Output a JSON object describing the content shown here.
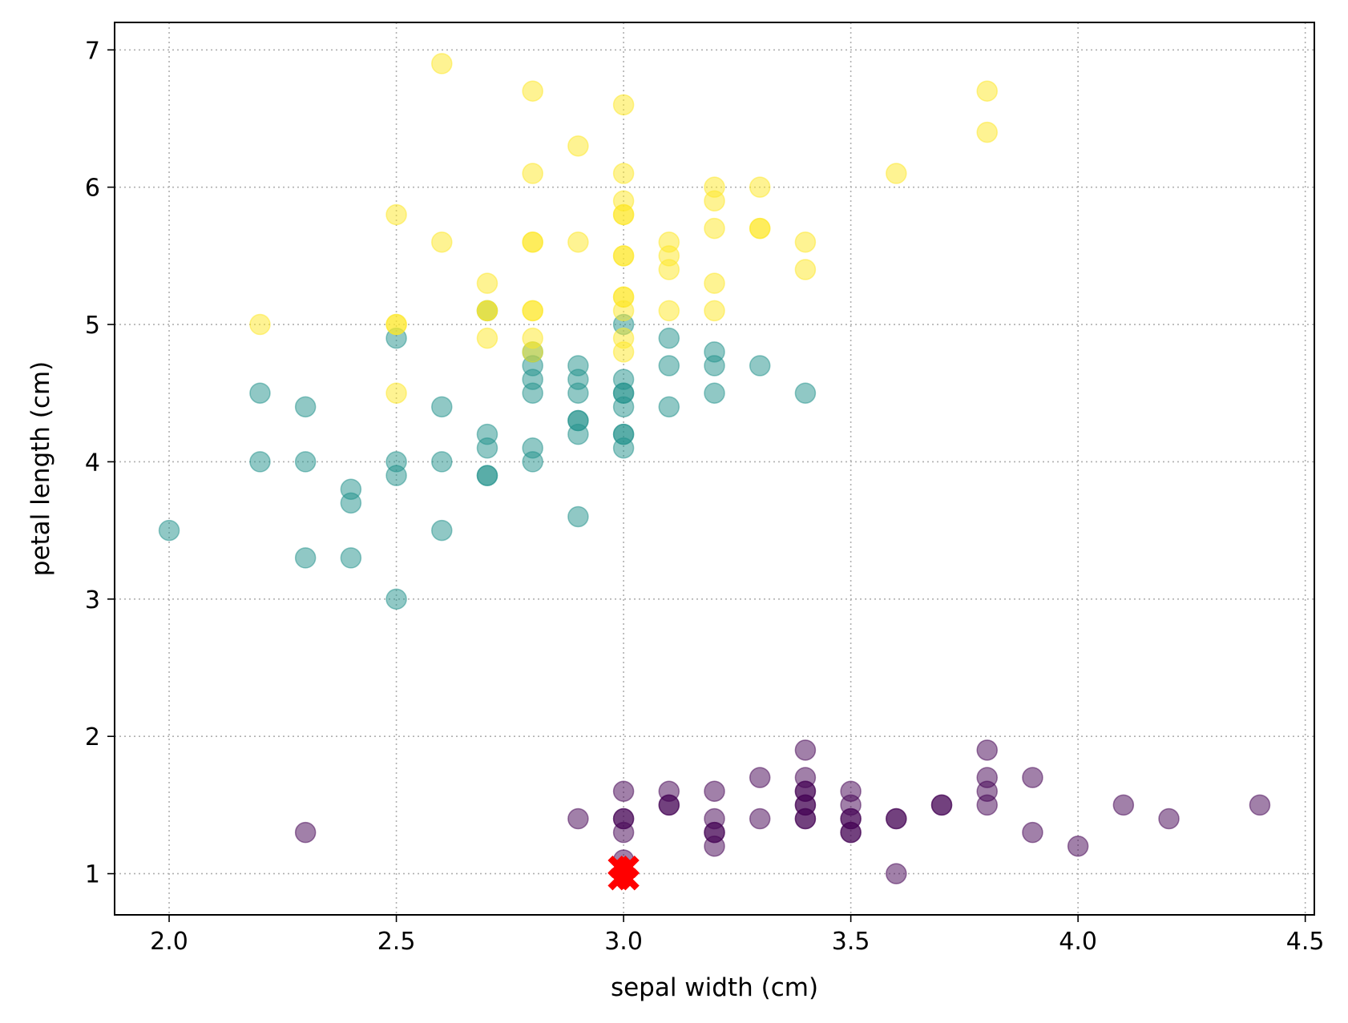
{
  "chart_data": {
    "type": "scatter",
    "xlabel": "sepal width (cm)",
    "ylabel": "petal length (cm)",
    "xlim": [
      1.88,
      4.52
    ],
    "ylim": [
      0.7,
      7.2
    ],
    "xticks": [
      "2.0",
      "2.5",
      "3.0",
      "3.5",
      "4.0",
      "4.5"
    ],
    "yticks": [
      "1",
      "2",
      "3",
      "4",
      "5",
      "6",
      "7"
    ],
    "grid": true,
    "colors": {
      "setosa": "#440154",
      "versicolor": "#21918c",
      "virginica": "#fde725",
      "marker": "#ff0000"
    },
    "series": [
      {
        "color": "#440154",
        "points": [
          [
            2.3,
            1.3
          ],
          [
            2.9,
            1.4
          ],
          [
            3.0,
            1.6
          ],
          [
            3.0,
            1.4
          ],
          [
            3.0,
            1.4
          ],
          [
            3.0,
            1.3
          ],
          [
            3.0,
            1.1
          ],
          [
            3.1,
            1.6
          ],
          [
            3.1,
            1.5
          ],
          [
            3.1,
            1.5
          ],
          [
            3.2,
            1.6
          ],
          [
            3.2,
            1.4
          ],
          [
            3.2,
            1.3
          ],
          [
            3.2,
            1.3
          ],
          [
            3.2,
            1.2
          ],
          [
            3.3,
            1.7
          ],
          [
            3.3,
            1.4
          ],
          [
            3.4,
            1.9
          ],
          [
            3.4,
            1.7
          ],
          [
            3.4,
            1.6
          ],
          [
            3.4,
            1.6
          ],
          [
            3.4,
            1.5
          ],
          [
            3.4,
            1.5
          ],
          [
            3.4,
            1.4
          ],
          [
            3.4,
            1.4
          ],
          [
            3.5,
            1.6
          ],
          [
            3.5,
            1.5
          ],
          [
            3.5,
            1.4
          ],
          [
            3.5,
            1.4
          ],
          [
            3.5,
            1.3
          ],
          [
            3.5,
            1.3
          ],
          [
            3.6,
            1.4
          ],
          [
            3.6,
            1.4
          ],
          [
            3.6,
            1.0
          ],
          [
            3.7,
            1.5
          ],
          [
            3.7,
            1.5
          ],
          [
            3.8,
            1.9
          ],
          [
            3.8,
            1.7
          ],
          [
            3.8,
            1.6
          ],
          [
            3.8,
            1.5
          ],
          [
            3.9,
            1.7
          ],
          [
            3.9,
            1.3
          ],
          [
            4.0,
            1.2
          ],
          [
            4.1,
            1.5
          ],
          [
            4.2,
            1.4
          ],
          [
            4.4,
            1.5
          ]
        ]
      },
      {
        "color": "#21918c",
        "points": [
          [
            2.0,
            3.5
          ],
          [
            2.2,
            4.5
          ],
          [
            2.2,
            4.0
          ],
          [
            2.3,
            4.4
          ],
          [
            2.3,
            4.0
          ],
          [
            2.3,
            3.3
          ],
          [
            2.4,
            3.8
          ],
          [
            2.4,
            3.7
          ],
          [
            2.4,
            3.3
          ],
          [
            2.5,
            4.9
          ],
          [
            2.5,
            4.0
          ],
          [
            2.5,
            3.9
          ],
          [
            2.5,
            3.0
          ],
          [
            2.6,
            4.4
          ],
          [
            2.6,
            4.0
          ],
          [
            2.6,
            3.5
          ],
          [
            2.7,
            4.2
          ],
          [
            2.7,
            4.1
          ],
          [
            2.7,
            3.9
          ],
          [
            2.7,
            3.9
          ],
          [
            2.7,
            5.1
          ],
          [
            2.8,
            4.8
          ],
          [
            2.8,
            4.7
          ],
          [
            2.8,
            4.6
          ],
          [
            2.8,
            4.5
          ],
          [
            2.8,
            4.1
          ],
          [
            2.8,
            4.0
          ],
          [
            2.9,
            4.7
          ],
          [
            2.9,
            4.6
          ],
          [
            2.9,
            4.5
          ],
          [
            2.9,
            4.3
          ],
          [
            2.9,
            4.3
          ],
          [
            2.9,
            4.2
          ],
          [
            2.9,
            3.6
          ],
          [
            3.0,
            5.0
          ],
          [
            3.0,
            4.6
          ],
          [
            3.0,
            4.5
          ],
          [
            3.0,
            4.5
          ],
          [
            3.0,
            4.4
          ],
          [
            3.0,
            4.2
          ],
          [
            3.0,
            4.2
          ],
          [
            3.0,
            4.1
          ],
          [
            3.1,
            4.9
          ],
          [
            3.1,
            4.7
          ],
          [
            3.1,
            4.4
          ],
          [
            3.2,
            4.8
          ],
          [
            3.2,
            4.7
          ],
          [
            3.2,
            4.5
          ],
          [
            3.3,
            4.7
          ],
          [
            3.4,
            4.5
          ]
        ]
      },
      {
        "color": "#fde725",
        "points": [
          [
            2.2,
            5.0
          ],
          [
            2.5,
            5.8
          ],
          [
            2.5,
            5.0
          ],
          [
            2.5,
            5.0
          ],
          [
            2.5,
            4.5
          ],
          [
            2.6,
            6.9
          ],
          [
            2.6,
            5.6
          ],
          [
            2.7,
            5.3
          ],
          [
            2.7,
            5.1
          ],
          [
            2.7,
            5.1
          ],
          [
            2.7,
            4.9
          ],
          [
            2.8,
            6.7
          ],
          [
            2.8,
            6.1
          ],
          [
            2.8,
            5.6
          ],
          [
            2.8,
            5.6
          ],
          [
            2.8,
            5.1
          ],
          [
            2.8,
            5.1
          ],
          [
            2.8,
            4.9
          ],
          [
            2.8,
            4.8
          ],
          [
            2.9,
            6.3
          ],
          [
            2.9,
            5.6
          ],
          [
            3.0,
            6.6
          ],
          [
            3.0,
            6.1
          ],
          [
            3.0,
            5.9
          ],
          [
            3.0,
            5.8
          ],
          [
            3.0,
            5.8
          ],
          [
            3.0,
            5.5
          ],
          [
            3.0,
            5.5
          ],
          [
            3.0,
            5.2
          ],
          [
            3.0,
            5.2
          ],
          [
            3.0,
            5.1
          ],
          [
            3.0,
            4.9
          ],
          [
            3.0,
            4.8
          ],
          [
            3.1,
            5.6
          ],
          [
            3.1,
            5.5
          ],
          [
            3.1,
            5.4
          ],
          [
            3.1,
            5.1
          ],
          [
            3.2,
            6.0
          ],
          [
            3.2,
            5.9
          ],
          [
            3.2,
            5.7
          ],
          [
            3.2,
            5.3
          ],
          [
            3.2,
            5.1
          ],
          [
            3.3,
            6.0
          ],
          [
            3.3,
            5.7
          ],
          [
            3.3,
            5.7
          ],
          [
            3.4,
            5.6
          ],
          [
            3.4,
            5.4
          ],
          [
            3.6,
            6.1
          ],
          [
            3.8,
            6.7
          ],
          [
            3.8,
            6.4
          ]
        ]
      }
    ],
    "highlight": {
      "color": "#ff0000",
      "points": [
        [
          2.99,
          1.05
        ],
        [
          3.01,
          1.05
        ],
        [
          2.99,
          0.96
        ],
        [
          3.01,
          0.96
        ]
      ]
    }
  }
}
